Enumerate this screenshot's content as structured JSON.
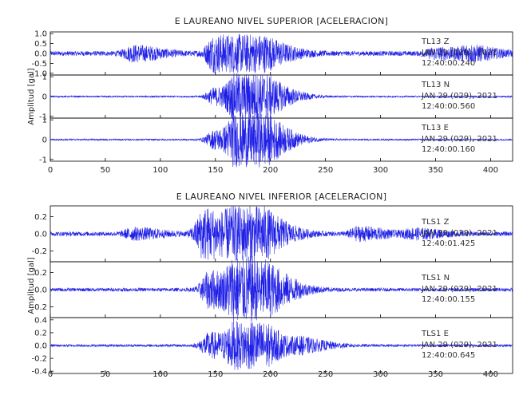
{
  "chart_data": [
    {
      "type": "line",
      "title": "E LAUREANO NIVEL SUPERIOR [ACELERACION]",
      "ylabel": "Amplitud [gal]",
      "xlim": [
        0,
        420
      ],
      "xticks": [
        0,
        50,
        100,
        150,
        200,
        250,
        300,
        350,
        400
      ],
      "colors": {
        "trace": "#1f1fe6",
        "axis": "#000000"
      },
      "series": [
        {
          "name": "TL13 Z",
          "station": "TL13",
          "component": "Z",
          "date": "JAN 29 (029), 2021",
          "time": "12:40:00.240",
          "ylim": [
            -1.0,
            1.0
          ],
          "yticks": [
            "1.0",
            "0.5",
            "0.0",
            "-0.5",
            "-1.0"
          ],
          "peak_abs": 1.0,
          "noise_abs": 0.12,
          "events": [
            {
              "t": 75,
              "a": 0.35
            },
            {
              "t": 150,
              "a": 1.0
            },
            {
              "t": 170,
              "a": 0.85
            },
            {
              "t": 198,
              "a": 0.35
            },
            {
              "t": 350,
              "a": 0.25
            },
            {
              "t": 380,
              "a": 0.3
            }
          ]
        },
        {
          "name": "TL13 N",
          "station": "TL13",
          "component": "N",
          "date": "JAN 29 (029), 2021",
          "time": "12:40:00.560",
          "ylim": [
            -1.0,
            1.0
          ],
          "yticks": [
            "1",
            "0",
            "-1"
          ],
          "peak_abs": 1.2,
          "noise_abs": 0.04,
          "events": [
            {
              "t": 150,
              "a": 0.45
            },
            {
              "t": 170,
              "a": 1.2
            },
            {
              "t": 195,
              "a": 0.55
            }
          ]
        },
        {
          "name": "TL13 E",
          "station": "TL13",
          "component": "E",
          "date": "JAN 29 (029), 2021",
          "time": "12:40:00.160",
          "ylim": [
            -1.0,
            1.0
          ],
          "yticks": [
            "1",
            "0",
            "-1"
          ],
          "peak_abs": 1.4,
          "noise_abs": 0.04,
          "events": [
            {
              "t": 150,
              "a": 0.5
            },
            {
              "t": 170,
              "a": 1.4
            },
            {
              "t": 195,
              "a": 0.65
            }
          ]
        }
      ]
    },
    {
      "type": "line",
      "title": "E LAUREANO NIVEL INFERIOR [ACELERACION]",
      "ylabel": "Amplitud [gal]",
      "xlim": [
        0,
        420
      ],
      "xticks": [
        0,
        50,
        100,
        150,
        200,
        250,
        300,
        350,
        400
      ],
      "colors": {
        "trace": "#1f1fe6",
        "axis": "#000000"
      },
      "series": [
        {
          "name": "TLS1 Z",
          "station": "TLS1",
          "component": "Z",
          "date": "JAN 29 (029), 2021",
          "time": "12:40:01.425",
          "ylim": [
            -0.3,
            0.3
          ],
          "yticks": [
            "0.2",
            "0.0",
            "-0.2"
          ],
          "peak_abs": 0.33,
          "noise_abs": 0.025,
          "events": [
            {
              "t": 75,
              "a": 0.06
            },
            {
              "t": 140,
              "a": 0.3
            },
            {
              "t": 170,
              "a": 0.33
            },
            {
              "t": 195,
              "a": 0.12
            },
            {
              "t": 280,
              "a": 0.07
            },
            {
              "t": 330,
              "a": 0.05
            }
          ]
        },
        {
          "name": "TLS1 N",
          "station": "TLS1",
          "component": "N",
          "date": "JAN 29 (029), 2021",
          "time": "12:40:00.155",
          "ylim": [
            -0.3,
            0.3
          ],
          "yticks": [
            "0.4",
            "0.2",
            "0.0",
            "-0.2"
          ],
          "peak_abs": 0.4,
          "noise_abs": 0.02,
          "events": [
            {
              "t": 145,
              "a": 0.22
            },
            {
              "t": 170,
              "a": 0.4
            },
            {
              "t": 200,
              "a": 0.15
            }
          ]
        },
        {
          "name": "TLS1 E",
          "station": "TLS1",
          "component": "E",
          "date": "JAN 29 (029), 2021",
          "time": "12:40:00.645",
          "ylim": [
            -0.4,
            0.4
          ],
          "yticks": [
            "0.4",
            "0.2",
            "0.0",
            "-0.2",
            "-0.4"
          ],
          "peak_abs": 0.38,
          "noise_abs": 0.02,
          "events": [
            {
              "t": 145,
              "a": 0.2
            },
            {
              "t": 170,
              "a": 0.38
            },
            {
              "t": 195,
              "a": 0.15
            },
            {
              "t": 230,
              "a": 0.08
            }
          ]
        }
      ]
    }
  ]
}
